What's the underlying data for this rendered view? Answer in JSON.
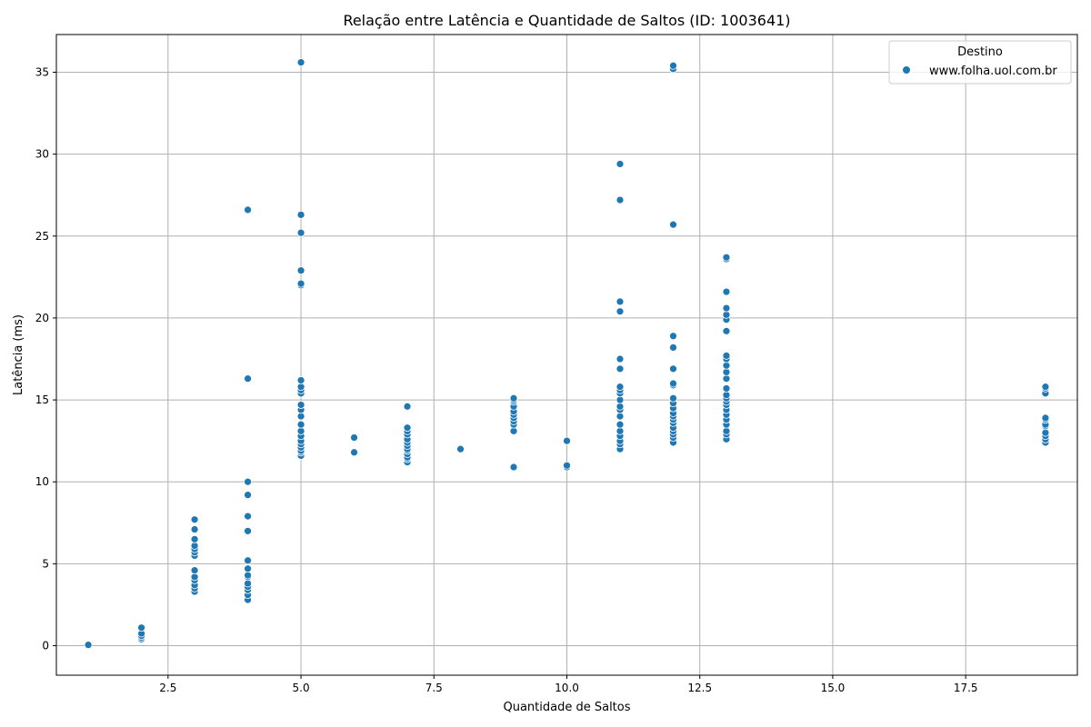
{
  "chart_data": {
    "type": "scatter",
    "title": "Relação entre Latência e Quantidade de Saltos (ID: 1003641)",
    "xlabel": "Quantidade de Saltos",
    "ylabel": "Latência (ms)",
    "xlim": [
      0.4,
      19.6
    ],
    "ylim": [
      -1.8,
      37.3
    ],
    "xticks": [
      2.5,
      5.0,
      7.5,
      10.0,
      12.5,
      15.0,
      17.5
    ],
    "xtick_labels": [
      "2.5",
      "5.0",
      "7.5",
      "10.0",
      "12.5",
      "15.0",
      "17.5"
    ],
    "yticks": [
      0,
      5,
      10,
      15,
      20,
      25,
      30,
      35
    ],
    "ytick_labels": [
      "0",
      "5",
      "10",
      "15",
      "20",
      "25",
      "30",
      "35"
    ],
    "grid": true,
    "legend": {
      "title": "Destino",
      "placement": "top-right"
    },
    "series": [
      {
        "name": "www.folha.uol.com.br",
        "color": "#1f77b4",
        "points": [
          [
            1,
            0.05
          ],
          [
            2,
            0.4
          ],
          [
            2,
            0.5
          ],
          [
            2,
            0.6
          ],
          [
            2,
            0.75
          ],
          [
            2,
            1.1
          ],
          [
            3,
            3.3
          ],
          [
            3,
            3.5
          ],
          [
            3,
            3.7
          ],
          [
            3,
            4.0
          ],
          [
            3,
            4.2
          ],
          [
            3,
            4.6
          ],
          [
            3,
            5.5
          ],
          [
            3,
            5.7
          ],
          [
            3,
            5.9
          ],
          [
            3,
            6.1
          ],
          [
            3,
            6.5
          ],
          [
            3,
            7.1
          ],
          [
            3,
            7.7
          ],
          [
            4,
            2.8
          ],
          [
            4,
            3.1
          ],
          [
            4,
            3.4
          ],
          [
            4,
            3.6
          ],
          [
            4,
            3.8
          ],
          [
            4,
            4.2
          ],
          [
            4,
            4.3
          ],
          [
            4,
            4.7
          ],
          [
            4,
            5.2
          ],
          [
            4,
            7.0
          ],
          [
            4,
            7.9
          ],
          [
            4,
            9.2
          ],
          [
            4,
            10.0
          ],
          [
            4,
            16.3
          ],
          [
            4,
            26.6
          ],
          [
            5,
            11.6
          ],
          [
            5,
            11.8
          ],
          [
            5,
            11.9
          ],
          [
            5,
            12.1
          ],
          [
            5,
            12.3
          ],
          [
            5,
            12.5
          ],
          [
            5,
            12.8
          ],
          [
            5,
            13.1
          ],
          [
            5,
            13.5
          ],
          [
            5,
            14.0
          ],
          [
            5,
            14.4
          ],
          [
            5,
            14.7
          ],
          [
            5,
            15.4
          ],
          [
            5,
            15.6
          ],
          [
            5,
            15.8
          ],
          [
            5,
            16.2
          ],
          [
            5,
            22.0
          ],
          [
            5,
            22.1
          ],
          [
            5,
            22.9
          ],
          [
            5,
            25.2
          ],
          [
            5,
            26.3
          ],
          [
            5,
            35.6
          ],
          [
            6,
            11.8
          ],
          [
            6,
            12.7
          ],
          [
            7,
            11.2
          ],
          [
            7,
            11.4
          ],
          [
            7,
            11.5
          ],
          [
            7,
            11.7
          ],
          [
            7,
            11.9
          ],
          [
            7,
            12.0
          ],
          [
            7,
            12.2
          ],
          [
            7,
            12.4
          ],
          [
            7,
            12.6
          ],
          [
            7,
            12.9
          ],
          [
            7,
            13.1
          ],
          [
            7,
            13.3
          ],
          [
            7,
            14.6
          ],
          [
            8,
            12.0
          ],
          [
            9,
            10.9
          ],
          [
            9,
            13.1
          ],
          [
            9,
            13.5
          ],
          [
            9,
            13.7
          ],
          [
            9,
            13.9
          ],
          [
            9,
            14.1
          ],
          [
            9,
            14.3
          ],
          [
            9,
            14.6
          ],
          [
            9,
            14.9
          ],
          [
            9,
            15.0
          ],
          [
            9,
            15.1
          ],
          [
            10,
            10.9
          ],
          [
            10,
            11.0
          ],
          [
            10,
            12.5
          ],
          [
            11,
            12.0
          ],
          [
            11,
            12.3
          ],
          [
            11,
            12.5
          ],
          [
            11,
            12.8
          ],
          [
            11,
            13.1
          ],
          [
            11,
            13.5
          ],
          [
            11,
            14.0
          ],
          [
            11,
            14.4
          ],
          [
            11,
            14.6
          ],
          [
            11,
            15.0
          ],
          [
            11,
            15.4
          ],
          [
            11,
            15.6
          ],
          [
            11,
            15.8
          ],
          [
            11,
            16.9
          ],
          [
            11,
            17.5
          ],
          [
            11,
            20.4
          ],
          [
            11,
            21.0
          ],
          [
            11,
            27.2
          ],
          [
            11,
            29.4
          ],
          [
            12,
            12.4
          ],
          [
            12,
            12.7
          ],
          [
            12,
            12.9
          ],
          [
            12,
            13.1
          ],
          [
            12,
            13.3
          ],
          [
            12,
            13.6
          ],
          [
            12,
            13.8
          ],
          [
            12,
            14.0
          ],
          [
            12,
            14.2
          ],
          [
            12,
            14.5
          ],
          [
            12,
            14.8
          ],
          [
            12,
            15.1
          ],
          [
            12,
            15.9
          ],
          [
            12,
            16.0
          ],
          [
            12,
            16.9
          ],
          [
            12,
            18.2
          ],
          [
            12,
            18.9
          ],
          [
            12,
            25.7
          ],
          [
            12,
            35.2
          ],
          [
            12,
            35.4
          ],
          [
            13,
            12.6
          ],
          [
            13,
            12.9
          ],
          [
            13,
            13.1
          ],
          [
            13,
            13.5
          ],
          [
            13,
            13.8
          ],
          [
            13,
            14.1
          ],
          [
            13,
            14.4
          ],
          [
            13,
            14.7
          ],
          [
            13,
            14.9
          ],
          [
            13,
            15.1
          ],
          [
            13,
            15.3
          ],
          [
            13,
            15.7
          ],
          [
            13,
            16.3
          ],
          [
            13,
            16.7
          ],
          [
            13,
            17.1
          ],
          [
            13,
            17.5
          ],
          [
            13,
            17.7
          ],
          [
            13,
            19.2
          ],
          [
            13,
            19.9
          ],
          [
            13,
            20.2
          ],
          [
            13,
            20.6
          ],
          [
            13,
            21.6
          ],
          [
            13,
            23.6
          ],
          [
            13,
            23.7
          ],
          [
            19,
            12.4
          ],
          [
            19,
            12.6
          ],
          [
            19,
            12.8
          ],
          [
            19,
            13.0
          ],
          [
            19,
            13.4
          ],
          [
            19,
            13.5
          ],
          [
            19,
            13.8
          ],
          [
            19,
            13.9
          ],
          [
            19,
            15.4
          ],
          [
            19,
            15.7
          ],
          [
            19,
            15.8
          ]
        ]
      }
    ]
  }
}
